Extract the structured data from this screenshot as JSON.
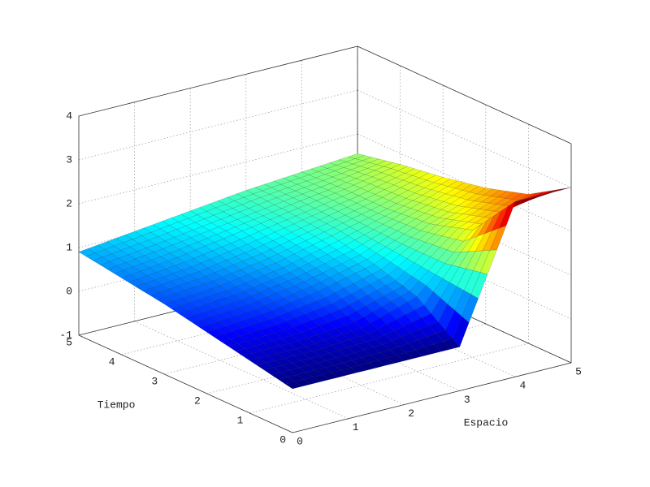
{
  "chart_data": {
    "type": "surface",
    "xlabel": "Espacio",
    "ylabel": "Tiempo",
    "x": [
      0,
      1,
      2,
      3,
      4,
      5
    ],
    "y": [
      0,
      1,
      2,
      3,
      4,
      5
    ],
    "z": [
      [
        0,
        0,
        0,
        0,
        3,
        3
      ],
      [
        0.2,
        0.2,
        0.3,
        0.7,
        1.9,
        2.4
      ],
      [
        0.4,
        0.5,
        0.7,
        1.0,
        1.6,
        2.1
      ],
      [
        0.6,
        0.7,
        0.9,
        1.2,
        1.5,
        1.9
      ],
      [
        0.75,
        0.9,
        1.1,
        1.3,
        1.5,
        1.75
      ],
      [
        0.9,
        1.05,
        1.2,
        1.35,
        1.45,
        1.55
      ]
    ],
    "xlim": [
      0,
      5
    ],
    "ylim": [
      0,
      5
    ],
    "zlim": [
      -1,
      4
    ],
    "xticks": [
      0,
      1,
      2,
      3,
      4,
      5
    ],
    "yticks": [
      0,
      1,
      2,
      3,
      4,
      5
    ],
    "zticks": [
      -1,
      0,
      1,
      2,
      3,
      4
    ],
    "colormap": "jet",
    "grid": true
  }
}
